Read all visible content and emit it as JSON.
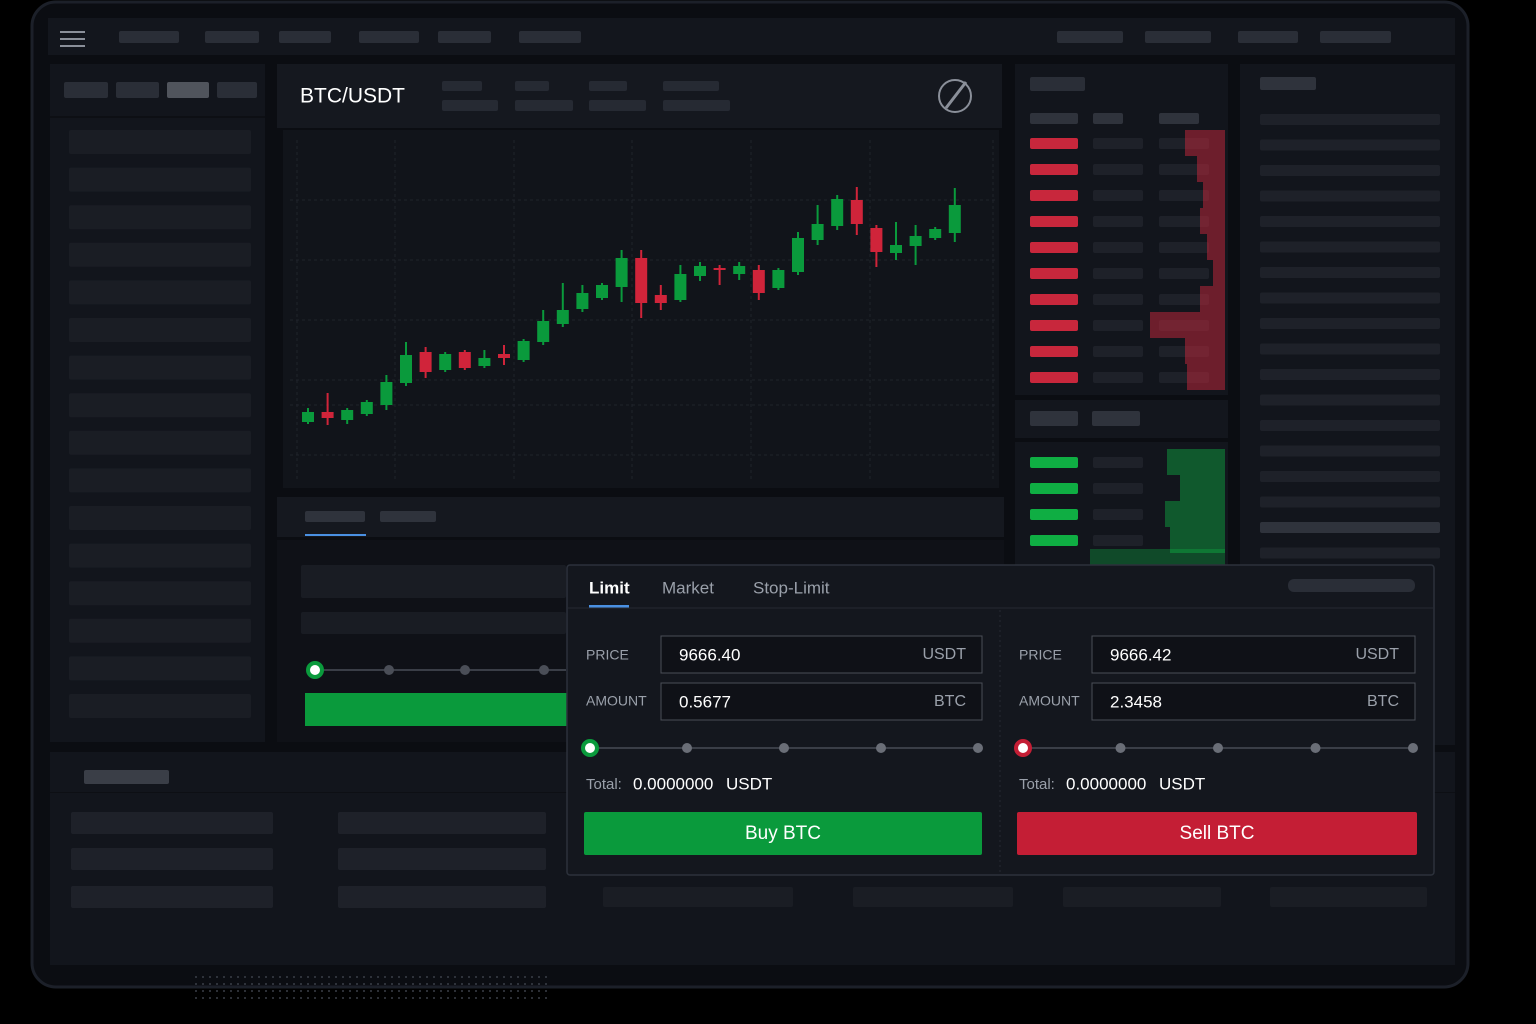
{
  "header": {
    "pair": "BTC/USDT"
  },
  "chart": {
    "type": "candlestick",
    "up_color": "#0a9a3c",
    "down_color": "#d0243a",
    "candles": [
      {
        "o": 68,
        "h": 82,
        "l": 66,
        "c": 78
      },
      {
        "o": 78,
        "h": 97,
        "l": 65,
        "c": 72
      },
      {
        "o": 70,
        "h": 82,
        "l": 66,
        "c": 80
      },
      {
        "o": 76,
        "h": 90,
        "l": 74,
        "c": 88
      },
      {
        "o": 85,
        "h": 115,
        "l": 80,
        "c": 108
      },
      {
        "o": 107,
        "h": 148,
        "l": 104,
        "c": 135
      },
      {
        "o": 138,
        "h": 143,
        "l": 112,
        "c": 118
      },
      {
        "o": 120,
        "h": 138,
        "l": 118,
        "c": 136
      },
      {
        "o": 138,
        "h": 140,
        "l": 120,
        "c": 122
      },
      {
        "o": 124,
        "h": 140,
        "l": 122,
        "c": 132
      },
      {
        "o": 136,
        "h": 145,
        "l": 125,
        "c": 132
      },
      {
        "o": 130,
        "h": 151,
        "l": 128,
        "c": 149
      },
      {
        "o": 148,
        "h": 180,
        "l": 145,
        "c": 169
      },
      {
        "o": 166,
        "h": 207,
        "l": 163,
        "c": 180
      },
      {
        "o": 181,
        "h": 205,
        "l": 178,
        "c": 197
      },
      {
        "o": 192,
        "h": 207,
        "l": 190,
        "c": 205
      },
      {
        "o": 203,
        "h": 240,
        "l": 188,
        "c": 232
      },
      {
        "o": 232,
        "h": 240,
        "l": 172,
        "c": 187
      },
      {
        "o": 195,
        "h": 205,
        "l": 180,
        "c": 187
      },
      {
        "o": 190,
        "h": 225,
        "l": 188,
        "c": 216
      },
      {
        "o": 214,
        "h": 228,
        "l": 209,
        "c": 224
      },
      {
        "o": 222,
        "h": 225,
        "l": 205,
        "c": 220
      },
      {
        "o": 216,
        "h": 228,
        "l": 210,
        "c": 224
      },
      {
        "o": 220,
        "h": 225,
        "l": 190,
        "c": 197
      },
      {
        "o": 202,
        "h": 222,
        "l": 200,
        "c": 220
      },
      {
        "o": 218,
        "h": 258,
        "l": 215,
        "c": 252
      },
      {
        "o": 250,
        "h": 285,
        "l": 245,
        "c": 266
      },
      {
        "o": 264,
        "h": 295,
        "l": 260,
        "c": 291
      },
      {
        "o": 290,
        "h": 303,
        "l": 255,
        "c": 266
      },
      {
        "o": 262,
        "h": 265,
        "l": 223,
        "c": 238
      },
      {
        "o": 237,
        "h": 268,
        "l": 230,
        "c": 245
      },
      {
        "o": 244,
        "h": 265,
        "l": 225,
        "c": 254
      },
      {
        "o": 252,
        "h": 263,
        "l": 250,
        "c": 261
      },
      {
        "o": 257,
        "h": 302,
        "l": 248,
        "c": 285
      }
    ]
  },
  "order_form": {
    "tabs": [
      "Limit",
      "Market",
      "Stop-Limit"
    ],
    "buy": {
      "price_label": "PRICE",
      "price": "9666.40",
      "price_unit": "USDT",
      "amount_label": "AMOUNT",
      "amount": "0.5677",
      "amount_unit": "BTC",
      "total_label": "Total:",
      "total": "0.0000000",
      "total_unit": "USDT",
      "button": "Buy BTC"
    },
    "sell": {
      "price_label": "PRICE",
      "price": "9666.42",
      "price_unit": "USDT",
      "amount_label": "AMOUNT",
      "amount": "2.3458",
      "amount_unit": "BTC",
      "total_label": "Total:",
      "total": "0.0000000",
      "total_unit": "USDT",
      "button": "Sell BTC"
    }
  }
}
